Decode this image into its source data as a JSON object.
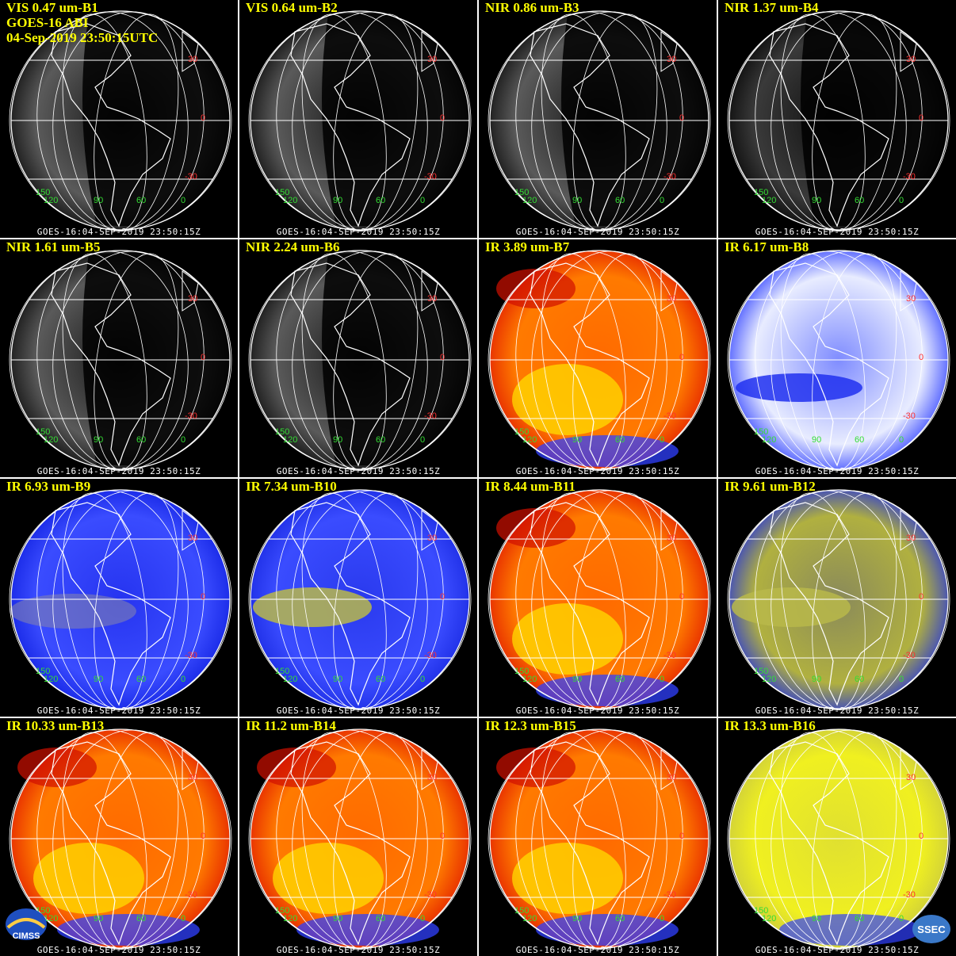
{
  "header": {
    "satellite": "GOES-16 ABI",
    "datetime": "04-Sep-2019 23:50:15UTC"
  },
  "timestamp": "GOES-16:04-SEP-2019 23:50:15Z",
  "lat_labels": [
    "30",
    "0",
    "-30"
  ],
  "lon_labels": [
    "150",
    "120",
    "90",
    "60",
    "0"
  ],
  "panels": [
    {
      "title": "VIS 0.47 um-B1",
      "style": "vis"
    },
    {
      "title": "VIS 0.64 um-B2",
      "style": "vis"
    },
    {
      "title": "NIR 0.86 um-B3",
      "style": "vis"
    },
    {
      "title": "NIR 1.37 um-B4",
      "style": "vis-dark"
    },
    {
      "title": "NIR 1.61 um-B5",
      "style": "vis"
    },
    {
      "title": "NIR 2.24 um-B6",
      "style": "vis"
    },
    {
      "title": "IR 3.89 um-B7",
      "style": "ir-warm"
    },
    {
      "title": "IR 6.17 um-B8",
      "style": "wv-white"
    },
    {
      "title": "IR 6.93 um-B9",
      "style": "wv-blue"
    },
    {
      "title": "IR 7.34 um-B10",
      "style": "wv-olive"
    },
    {
      "title": "IR 8.44 um-B11",
      "style": "ir-warm"
    },
    {
      "title": "IR 9.61 um-B12",
      "style": "ir-olive"
    },
    {
      "title": "IR 10.33 um-B13",
      "style": "ir-warm"
    },
    {
      "title": "IR 11.2 um-B14",
      "style": "ir-warm"
    },
    {
      "title": "IR 12.3 um-B15",
      "style": "ir-warm"
    },
    {
      "title": "IR 13.3 um-B16",
      "style": "ir-yellow"
    }
  ],
  "logos": {
    "left": "CIMSS",
    "right": "SSEC"
  },
  "colors": {
    "title": "#ffff00",
    "lat_label": "#ff3030",
    "lon_label": "#33dd33"
  }
}
